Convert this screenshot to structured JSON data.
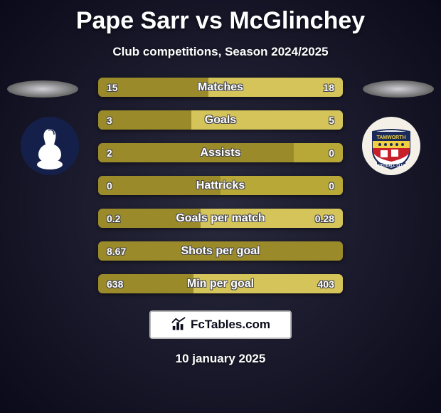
{
  "title": "Pape Sarr vs McGlinchey",
  "subtitle": "Club competitions, Season 2024/2025",
  "date": "10 january 2025",
  "footer_brand": "FcTables.com",
  "colors": {
    "bar_left": "#9a8a2a",
    "bar_right": "#b8a838",
    "bar_highlight": "#d4c45a",
    "bg_dark": "#0a0a1a",
    "bg_light": "#2a2a3e"
  },
  "stats": [
    {
      "label": "Matches",
      "left_val": "15",
      "right_val": "18",
      "left_pct": 45,
      "right_pct": 55,
      "highlight_right": true
    },
    {
      "label": "Goals",
      "left_val": "3",
      "right_val": "5",
      "left_pct": 38,
      "right_pct": 62,
      "highlight_right": true
    },
    {
      "label": "Assists",
      "left_val": "2",
      "right_val": "0",
      "left_pct": 80,
      "right_pct": 20,
      "highlight_right": false
    },
    {
      "label": "Hattricks",
      "left_val": "0",
      "right_val": "0",
      "left_pct": 50,
      "right_pct": 50,
      "highlight_right": false
    },
    {
      "label": "Goals per match",
      "left_val": "0.2",
      "right_val": "0.28",
      "left_pct": 42,
      "right_pct": 58,
      "highlight_right": true
    },
    {
      "label": "Shots per goal",
      "left_val": "8.67",
      "right_val": "",
      "left_pct": 100,
      "right_pct": 0,
      "highlight_right": false
    },
    {
      "label": "Min per goal",
      "left_val": "638",
      "right_val": "403",
      "left_pct": 39,
      "right_pct": 61,
      "highlight_right": true
    }
  ]
}
